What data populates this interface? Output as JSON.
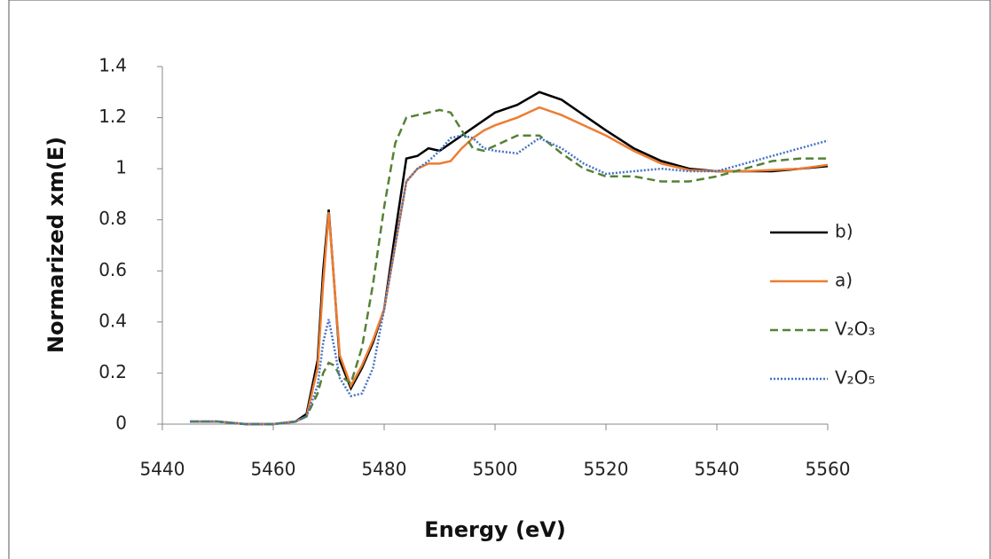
{
  "chart_data": {
    "type": "line",
    "xlabel": "Energy (eV)",
    "ylabel": "Normarized xm(E)",
    "x": [
      5445,
      5450,
      5455,
      5460,
      5464,
      5466,
      5468,
      5469,
      5470,
      5471,
      5472,
      5474,
      5476,
      5478,
      5480,
      5482,
      5484,
      5486,
      5488,
      5490,
      5492,
      5494,
      5496,
      5498,
      5500,
      5504,
      5508,
      5512,
      5516,
      5520,
      5525,
      5530,
      5535,
      5540,
      5545,
      5550,
      5555,
      5560
    ],
    "series": [
      {
        "name": "b)",
        "color": "#000000",
        "dash": "solid",
        "values": [
          0.01,
          0.01,
          0.0,
          0.0,
          0.01,
          0.04,
          0.25,
          0.6,
          0.84,
          0.55,
          0.25,
          0.14,
          0.22,
          0.32,
          0.45,
          0.75,
          1.04,
          1.05,
          1.08,
          1.07,
          1.1,
          1.13,
          1.16,
          1.19,
          1.22,
          1.25,
          1.3,
          1.27,
          1.21,
          1.15,
          1.08,
          1.03,
          1.0,
          0.99,
          0.99,
          0.99,
          1.0,
          1.01
        ]
      },
      {
        "name": "a)",
        "color": "#ED7D31",
        "dash": "solid",
        "values": [
          0.01,
          0.01,
          0.0,
          0.0,
          0.01,
          0.03,
          0.22,
          0.55,
          0.83,
          0.55,
          0.27,
          0.15,
          0.23,
          0.33,
          0.45,
          0.7,
          0.95,
          1.0,
          1.02,
          1.02,
          1.03,
          1.08,
          1.12,
          1.15,
          1.17,
          1.2,
          1.24,
          1.21,
          1.17,
          1.13,
          1.07,
          1.02,
          0.995,
          0.99,
          0.99,
          0.995,
          1.0,
          1.015
        ]
      },
      {
        "name": "V₂O₃",
        "color": "#548235",
        "dash": "dashed",
        "values": [
          0.01,
          0.01,
          0.0,
          0.0,
          0.01,
          0.03,
          0.12,
          0.2,
          0.24,
          0.23,
          0.19,
          0.16,
          0.3,
          0.55,
          0.85,
          1.1,
          1.2,
          1.21,
          1.22,
          1.23,
          1.22,
          1.15,
          1.08,
          1.07,
          1.09,
          1.13,
          1.13,
          1.06,
          1.0,
          0.97,
          0.97,
          0.95,
          0.95,
          0.97,
          1.0,
          1.03,
          1.04,
          1.04
        ]
      },
      {
        "name": "V₂O₅",
        "color": "#4472C4",
        "dash": "dotted",
        "values": [
          0.01,
          0.01,
          0.0,
          0.0,
          0.01,
          0.03,
          0.15,
          0.32,
          0.41,
          0.3,
          0.18,
          0.11,
          0.12,
          0.22,
          0.45,
          0.7,
          0.95,
          1.0,
          1.03,
          1.07,
          1.12,
          1.13,
          1.12,
          1.08,
          1.07,
          1.06,
          1.12,
          1.08,
          1.02,
          0.98,
          0.99,
          1.0,
          0.99,
          0.99,
          1.02,
          1.05,
          1.08,
          1.11
        ]
      }
    ],
    "xlim": [
      5440,
      5560
    ],
    "xticks": [
      5440,
      5460,
      5480,
      5500,
      5520,
      5540,
      5560
    ],
    "ylim": [
      0,
      1.4
    ],
    "yticks": [
      0,
      0.2,
      0.4,
      0.6,
      0.8,
      1,
      1.2,
      1.4
    ],
    "grid": false,
    "legend": "right"
  }
}
